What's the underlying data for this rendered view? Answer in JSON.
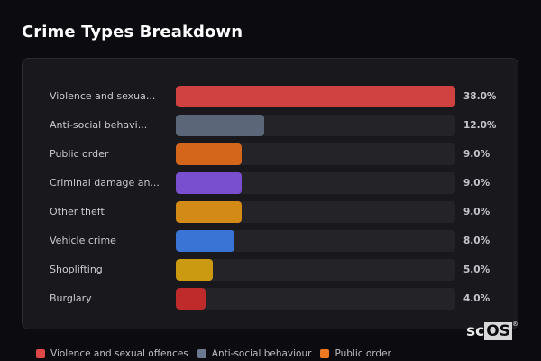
{
  "header": {
    "title": "Crime Types Breakdown"
  },
  "chart_data": {
    "type": "bar",
    "orientation": "horizontal",
    "title": "Crime Types Breakdown",
    "categories": [
      "Violence and sexual offences",
      "Anti-social behaviour",
      "Public order",
      "Criminal damage and arson",
      "Other theft",
      "Vehicle crime",
      "Shoplifting",
      "Burglary"
    ],
    "display_labels": [
      "Violence and sexua...",
      "Anti-social behavi...",
      "Public order",
      "Criminal damage an...",
      "Other theft",
      "Vehicle crime",
      "Shoplifting",
      "Burglary"
    ],
    "values": [
      38.0,
      12.0,
      9.0,
      9.0,
      9.0,
      8.0,
      5.0,
      4.0
    ],
    "value_labels": [
      "38.0%",
      "12.0%",
      "9.0%",
      "9.0%",
      "9.0%",
      "8.0%",
      "5.0%",
      "4.0%"
    ],
    "colors": [
      "#d04141",
      "#5b6678",
      "#d4661c",
      "#7a4fcf",
      "#d48a17",
      "#3a74d4",
      "#cc9a10",
      "#bf2b2b"
    ],
    "xlabel": "",
    "ylabel": "",
    "xlim": [
      0,
      38
    ],
    "grid": false,
    "legend_position": "bottom"
  },
  "legend": [
    {
      "label": "Violence and sexual offences",
      "color": "#e04848"
    },
    {
      "label": "Anti-social behaviour",
      "color": "#6b7890"
    },
    {
      "label": "Public order",
      "color": "#f07a22"
    }
  ],
  "logo": {
    "text_a": "sc",
    "text_b": "OS",
    "reg": "®"
  }
}
